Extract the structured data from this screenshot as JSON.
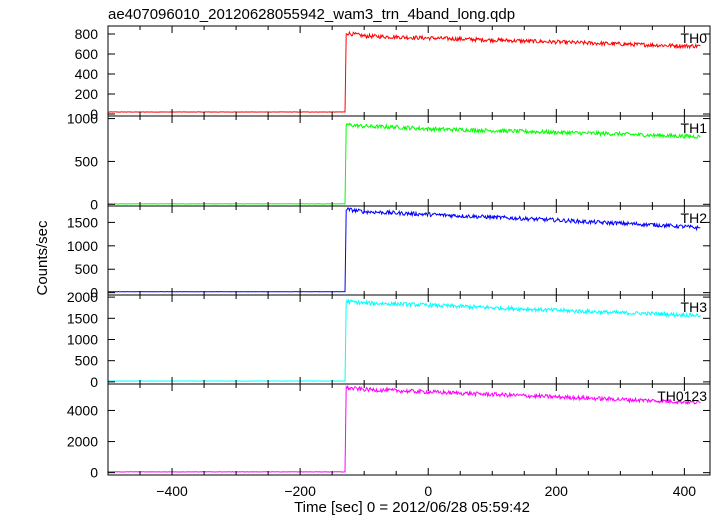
{
  "title": "ae407096010_20120628055942_wam3_trn_4band_long.qdp",
  "ylabel": "Counts/sec",
  "xlabel": "Time [sec] 0 = 2012/06/28 05:59:42",
  "chart_data": {
    "type": "line",
    "title": "ae407096010_20120628055942_wam3_trn_4band_long.qdp",
    "xlabel": "Time [sec] 0 = 2012/06/28 05:59:42",
    "ylabel": "Counts/sec",
    "xlim": [
      -500,
      440
    ],
    "x_ticks": [
      -400,
      -200,
      0,
      200,
      400
    ],
    "grid": false,
    "panels": [
      {
        "name": "TH0",
        "color": "#ff0000",
        "ylim": [
          -20,
          880
        ],
        "y_ticks": [
          0,
          200,
          400,
          600,
          800
        ],
        "x": [
          -500,
          -130,
          -128,
          -100,
          -50,
          0,
          50,
          100,
          150,
          200,
          250,
          300,
          350,
          400,
          425
        ],
        "y": [
          20,
          20,
          810,
          780,
          770,
          760,
          750,
          740,
          730,
          720,
          710,
          700,
          690,
          680,
          680
        ]
      },
      {
        "name": "TH1",
        "color": "#00ff00",
        "ylim": [
          -20,
          1030
        ],
        "y_ticks": [
          0,
          500,
          1000
        ],
        "x": [
          -500,
          -130,
          -128,
          -100,
          -50,
          0,
          50,
          100,
          150,
          200,
          250,
          300,
          350,
          400,
          425
        ],
        "y": [
          5,
          5,
          930,
          910,
          900,
          880,
          870,
          860,
          850,
          840,
          830,
          820,
          805,
          795,
          790
        ]
      },
      {
        "name": "TH2",
        "color": "#0000ff",
        "ylim": [
          -50,
          1850
        ],
        "y_ticks": [
          0,
          500,
          1000,
          1500
        ],
        "x": [
          -500,
          -130,
          -128,
          -100,
          -50,
          0,
          50,
          100,
          150,
          200,
          250,
          300,
          350,
          400,
          425
        ],
        "y": [
          20,
          20,
          1780,
          1730,
          1700,
          1670,
          1640,
          1610,
          1580,
          1550,
          1510,
          1480,
          1450,
          1410,
          1380
        ]
      },
      {
        "name": "TH3",
        "color": "#00ffff",
        "ylim": [
          -50,
          2050
        ],
        "y_ticks": [
          0,
          500,
          1000,
          1500,
          2000
        ],
        "x": [
          -500,
          -130,
          -128,
          -100,
          -50,
          0,
          50,
          100,
          150,
          200,
          250,
          300,
          350,
          400,
          425
        ],
        "y": [
          20,
          20,
          1900,
          1860,
          1840,
          1810,
          1780,
          1750,
          1720,
          1690,
          1660,
          1630,
          1610,
          1580,
          1570
        ]
      },
      {
        "name": "TH0123",
        "color": "#ff00ff",
        "ylim": [
          -150,
          5700
        ],
        "y_ticks": [
          0,
          2000,
          4000
        ],
        "x": [
          -500,
          -130,
          -128,
          -100,
          -50,
          0,
          50,
          100,
          150,
          200,
          250,
          300,
          350,
          400,
          425
        ],
        "y": [
          50,
          50,
          5450,
          5350,
          5270,
          5190,
          5110,
          5030,
          4950,
          4870,
          4790,
          4710,
          4630,
          4550,
          4500
        ]
      }
    ]
  }
}
